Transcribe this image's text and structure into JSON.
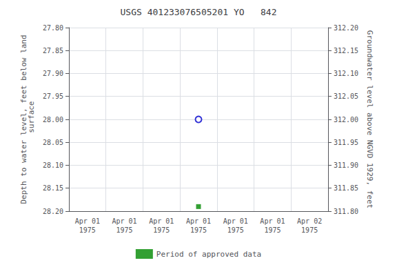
{
  "chart_data": {
    "type": "scatter",
    "title": "USGS 401233076505201 YO   842",
    "ylabel": "Depth to water level, feet below land\n surface",
    "y2label": "Groundwater level above NGVD 1929, feet",
    "categories": [
      "Apr 01\n1975",
      "Apr 01\n1975",
      "Apr 01\n1975",
      "Apr 01\n1975",
      "Apr 01\n1975",
      "Apr 01\n1975",
      "Apr 02\n1975"
    ],
    "series": [
      {
        "color": "#0000cc",
        "marker": "circle",
        "values": [
          null,
          null,
          null,
          28.0,
          null,
          null,
          null
        ]
      },
      {
        "name": "Period of approved data",
        "color": "#008800",
        "marker": "square",
        "values": [
          null,
          null,
          null,
          28.19,
          null,
          null,
          null
        ]
      }
    ],
    "ylim": [
      28.2,
      27.8
    ],
    "yticks": [
      {
        "value": 27.8,
        "label": "27.80"
      },
      {
        "value": 27.85,
        "label": "27.85"
      },
      {
        "value": 27.9,
        "label": "27.90"
      },
      {
        "value": 27.95,
        "label": "27.95"
      },
      {
        "value": 28.0,
        "label": "28.00"
      },
      {
        "value": 28.05,
        "label": "28.05"
      },
      {
        "value": 28.1,
        "label": "28.10"
      },
      {
        "value": 28.15,
        "label": "28.15"
      },
      {
        "value": 28.2,
        "label": "28.20"
      }
    ],
    "y2lim": [
      311.8,
      312.2
    ],
    "y2ticks": [
      {
        "value": 311.8,
        "label": "311.80"
      },
      {
        "value": 311.85,
        "label": "311.85"
      },
      {
        "value": 311.9,
        "label": "311.90"
      },
      {
        "value": 311.95,
        "label": "311.95"
      },
      {
        "value": 312.0,
        "label": "312.00"
      },
      {
        "value": 312.05,
        "label": "312.05"
      },
      {
        "value": 312.1,
        "label": "312.10"
      },
      {
        "value": 312.15,
        "label": "312.15"
      },
      {
        "value": 312.2,
        "label": "312.20"
      }
    ],
    "grid": true,
    "legend": "bottom"
  }
}
